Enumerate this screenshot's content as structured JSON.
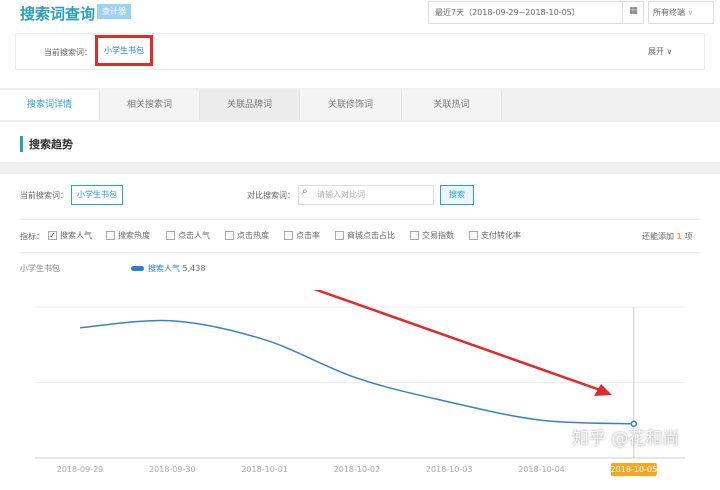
{
  "header": {
    "title": "搜索词查询",
    "badge": "查计器",
    "date_range": "最近7天（2018-09-29~2018-10-05）",
    "calendar_icon": "calendar-icon",
    "terminal": "所有终端",
    "terminal_chevron": "∨"
  },
  "current": {
    "label": "当前搜索词：",
    "word": "小学生书包",
    "expand": "展开 ∨"
  },
  "tabs": [
    {
      "label": "搜索词详情",
      "active": true
    },
    {
      "label": "相关搜索词"
    },
    {
      "label": "关联品牌词"
    },
    {
      "label": "关联修饰词"
    },
    {
      "label": "关联热词"
    }
  ],
  "section": {
    "title": "搜索趋势"
  },
  "query": {
    "current_label": "当前搜索词：",
    "current_word": "小学生书包",
    "compare_label": "对比搜索词：",
    "compare_placeholder": "请输入对比词",
    "search_button": "搜索"
  },
  "metrics": {
    "label": "指标：",
    "items": [
      {
        "label": "搜索人气",
        "checked": true
      },
      {
        "label": "搜索热度"
      },
      {
        "label": "点击人气"
      },
      {
        "label": "点击热度"
      },
      {
        "label": "点击率"
      },
      {
        "label": "商城点击占比"
      },
      {
        "label": "交易指数"
      },
      {
        "label": "支付转化率"
      }
    ],
    "remaining_prefix": "还能添加",
    "remaining_count": "1",
    "remaining_suffix": "项"
  },
  "watermark": "知乎 @花和尚",
  "colors": {
    "accent": "#2a9fd6",
    "line": "#3a7fd0",
    "highlight": "#f5a623",
    "annotation": "#e12a2a"
  },
  "chart_data": {
    "type": "line",
    "title": "小学生书包",
    "legend": [
      {
        "name": "搜索人气",
        "value": "5,438"
      }
    ],
    "x": [
      "2018-09-29",
      "2018-09-30",
      "2018-10-01",
      "2018-10-02",
      "2018-10-03",
      "2018-10-04",
      "2018-10-05"
    ],
    "series": [
      {
        "name": "搜索人气",
        "values": [
          20700,
          21800,
          18800,
          12700,
          8900,
          6000,
          5438
        ]
      }
    ],
    "ylim": [
      0,
      24000
    ],
    "y_grid": [
      12000,
      24000
    ],
    "grid": true,
    "highlighted_x": "2018-10-05",
    "smooth": true,
    "annotation": "red arrow pointing down toward the last point"
  }
}
